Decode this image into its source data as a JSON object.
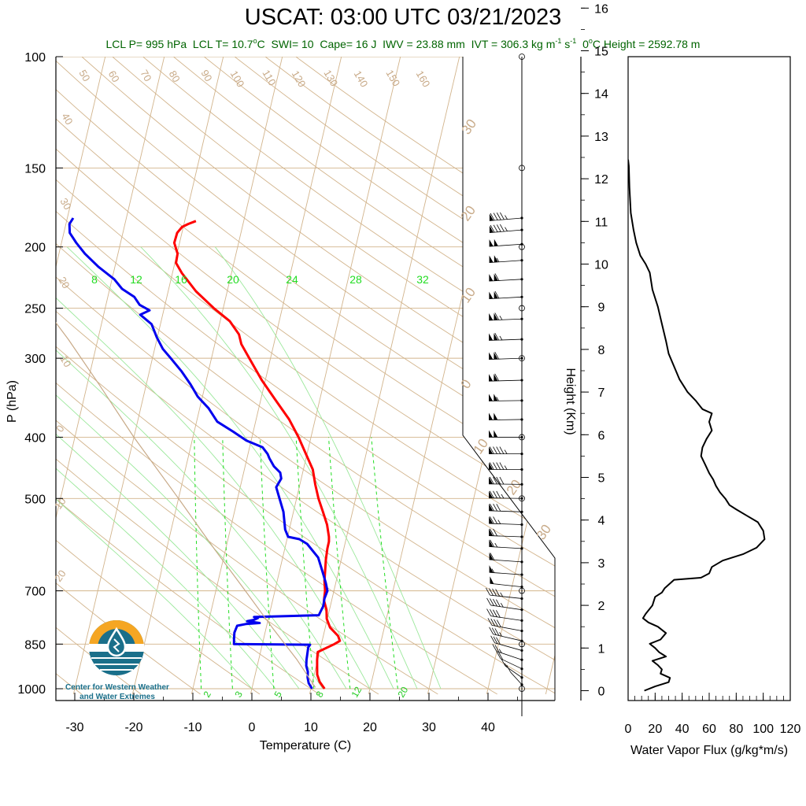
{
  "title": "USCAT: 03:00 UTC 03/21/2023",
  "diagnostics": {
    "lcl_p": "LCL P= 995 hPa",
    "lcl_t": "LCL T= 10.7",
    "lcl_t_unit_sup": "o",
    "lcl_t_unit": "C",
    "swi": "SWI= 10",
    "cape": "Cape= 16 J",
    "iwv": "IWV = 23.88 mm",
    "ivt": "IVT = 306.3 kg m",
    "ivt_sup1": "-1",
    "ivt_mid": " s",
    "ivt_sup2": "-1",
    "zero_height": "0",
    "zero_sup": "o",
    "zero_rest": "C Height = 2592.78 m"
  },
  "colors": {
    "temperature": "#ff0000",
    "dewpoint": "#0000ee",
    "isotherm": "#d2b48c",
    "mixing_ratio": "#22dd22",
    "diag_text": "#006400",
    "logo_orange": "#f5a623",
    "logo_teal": "#1a6f8a"
  },
  "logo": {
    "line1": "Center for Western Weather",
    "line2": "and Water Extremes"
  },
  "chart_data": [
    {
      "type": "line",
      "chart_kind": "skew-t log-p sounding",
      "xlabel": "Temperature (C)",
      "ylabel": "P (hPa)",
      "x_ticks": [
        -30,
        -20,
        -10,
        0,
        10,
        20,
        30,
        40
      ],
      "y_ticks": [
        100,
        150,
        200,
        250,
        300,
        400,
        500,
        700,
        850,
        1000
      ],
      "y_scale": "log",
      "y_reversed": true,
      "xlim": [
        -34,
        52
      ],
      "ylim": [
        1020,
        100
      ],
      "dry_adiabat_labels": [
        "50",
        "60",
        "70",
        "80",
        "90",
        "100",
        "110",
        "120",
        "130",
        "140",
        "150",
        "160",
        "40",
        "30",
        "20"
      ],
      "isotherm_labels": [
        "30",
        "20",
        "10",
        "0",
        "-10",
        "-20",
        "-30",
        "20",
        "10",
        "0",
        "10",
        "20"
      ],
      "moist_adiabat_labels": [
        "8",
        "12",
        "16",
        "20",
        "24",
        "28",
        "32"
      ],
      "mixing_ratio_labels": [
        "2",
        "3",
        "5",
        "8",
        "12",
        "20"
      ],
      "series": [
        {
          "name": "",
          "role": "temperature",
          "color": "#ff0000",
          "points": [
            [
              12.3,
              1000
            ],
            [
              11.2,
              975
            ],
            [
              10.5,
              950
            ],
            [
              10.2,
              925
            ],
            [
              9.9,
              900
            ],
            [
              9.7,
              875
            ],
            [
              12.2,
              850
            ],
            [
              13.0,
              840
            ],
            [
              12.5,
              825
            ],
            [
              10.8,
              800
            ],
            [
              9.9,
              775
            ],
            [
              9.5,
              750
            ],
            [
              8.7,
              725
            ],
            [
              8.5,
              700
            ],
            [
              8.0,
              675
            ],
            [
              7.7,
              650
            ],
            [
              7.4,
              625
            ],
            [
              7.2,
              600
            ],
            [
              7.2,
              585
            ],
            [
              7.0,
              575
            ],
            [
              6.2,
              550
            ],
            [
              5.0,
              525
            ],
            [
              3.7,
              500
            ],
            [
              2.6,
              475
            ],
            [
              1.6,
              450
            ],
            [
              -0.2,
              425
            ],
            [
              -2.1,
              400
            ],
            [
              -4.4,
              375
            ],
            [
              -7.4,
              350
            ],
            [
              -10.6,
              325
            ],
            [
              -13.6,
              300
            ],
            [
              -15.5,
              285
            ],
            [
              -16.3,
              275
            ],
            [
              -18.4,
              262
            ],
            [
              -21.6,
              250
            ],
            [
              -25.3,
              235
            ],
            [
              -28.4,
              220
            ],
            [
              -29.8,
              212
            ],
            [
              -29.9,
              205
            ],
            [
              -30.9,
              197
            ],
            [
              -30.8,
              190
            ],
            [
              -30.2,
              186
            ],
            [
              -29.3,
              184
            ],
            [
              -28.1,
              182
            ]
          ]
        },
        {
          "name": "",
          "role": "dewpoint",
          "color": "#0000ee",
          "points": [
            [
              10.2,
              1000
            ],
            [
              9.4,
              980
            ],
            [
              9.0,
              960
            ],
            [
              8.8,
              940
            ],
            [
              8.3,
              920
            ],
            [
              8.1,
              900
            ],
            [
              8.0,
              880
            ],
            [
              7.9,
              860
            ],
            [
              8.1,
              852
            ],
            [
              -4.8,
              850
            ],
            [
              -5.0,
              835
            ],
            [
              -5.2,
              815
            ],
            [
              -5.0,
              795
            ],
            [
              -3.6,
              790
            ],
            [
              -1.3,
              787
            ],
            [
              -3.5,
              782
            ],
            [
              -2.4,
              778
            ],
            [
              -1.8,
              773
            ],
            [
              -2.5,
              770
            ],
            [
              8.4,
              765
            ],
            [
              8.8,
              740
            ],
            [
              8.7,
              720
            ],
            [
              8.9,
              700
            ],
            [
              8.3,
              680
            ],
            [
              7.2,
              650
            ],
            [
              6.0,
              620
            ],
            [
              3.6,
              590
            ],
            [
              2.1,
              580
            ],
            [
              0.1,
              575
            ],
            [
              -0.7,
              560
            ],
            [
              -1.7,
              525
            ],
            [
              -2.9,
              500
            ],
            [
              -3.9,
              480
            ],
            [
              -3.4,
              465
            ],
            [
              -3.8,
              455
            ],
            [
              -5.1,
              445
            ],
            [
              -6.2,
              432
            ],
            [
              -6.7,
              425
            ],
            [
              -7.8,
              415
            ],
            [
              -10.8,
              405
            ],
            [
              -13.4,
              392
            ],
            [
              -16.5,
              378
            ],
            [
              -18.5,
              360
            ],
            [
              -20.8,
              345
            ],
            [
              -22.5,
              330
            ],
            [
              -24.5,
              315
            ],
            [
              -26.9,
              300
            ],
            [
              -28.6,
              290
            ],
            [
              -30.1,
              278
            ],
            [
              -31.5,
              265
            ],
            [
              -33.8,
              256
            ],
            [
              -32.4,
              252
            ],
            [
              -34.3,
              247
            ],
            [
              -35.5,
              240
            ],
            [
              -37.9,
              233
            ],
            [
              -39.6,
              225
            ],
            [
              -42.8,
              215
            ],
            [
              -45.6,
              205
            ],
            [
              -47.5,
              197
            ],
            [
              -49.0,
              190
            ],
            [
              -49.4,
              184
            ],
            [
              -49.0,
              180
            ]
          ]
        },
        {
          "name": "",
          "role": "parcel",
          "color": "#c8aa88",
          "points": [
            [
              10.7,
              995
            ],
            [
              6.5,
              900
            ],
            [
              1.0,
              800
            ],
            [
              -5.0,
              700
            ],
            [
              -12.0,
              600
            ],
            [
              -20.0,
              500
            ],
            [
              -30.0,
              400
            ],
            [
              -38.0,
              330
            ],
            [
              -45.0,
              280
            ],
            [
              -55.0,
              225
            ]
          ]
        }
      ],
      "wind_barbs": [
        {
          "p": 985,
          "speed_kt": 10,
          "dir_deg": 200
        },
        {
          "p": 960,
          "speed_kt": 15,
          "dir_deg": 210
        },
        {
          "p": 930,
          "speed_kt": 20,
          "dir_deg": 220
        },
        {
          "p": 900,
          "speed_kt": 25,
          "dir_deg": 230
        },
        {
          "p": 870,
          "speed_kt": 30,
          "dir_deg": 235
        },
        {
          "p": 840,
          "speed_kt": 35,
          "dir_deg": 240
        },
        {
          "p": 810,
          "speed_kt": 40,
          "dir_deg": 245
        },
        {
          "p": 780,
          "speed_kt": 40,
          "dir_deg": 250
        },
        {
          "p": 750,
          "speed_kt": 45,
          "dir_deg": 250
        },
        {
          "p": 720,
          "speed_kt": 45,
          "dir_deg": 255
        },
        {
          "p": 690,
          "speed_kt": 50,
          "dir_deg": 255
        },
        {
          "p": 660,
          "speed_kt": 55,
          "dir_deg": 260
        },
        {
          "p": 630,
          "speed_kt": 60,
          "dir_deg": 260
        },
        {
          "p": 600,
          "speed_kt": 65,
          "dir_deg": 262
        },
        {
          "p": 575,
          "speed_kt": 70,
          "dir_deg": 265
        },
        {
          "p": 550,
          "speed_kt": 75,
          "dir_deg": 265
        },
        {
          "p": 525,
          "speed_kt": 80,
          "dir_deg": 265
        },
        {
          "p": 500,
          "speed_kt": 85,
          "dir_deg": 268
        },
        {
          "p": 475,
          "speed_kt": 90,
          "dir_deg": 268
        },
        {
          "p": 450,
          "speed_kt": 95,
          "dir_deg": 270
        },
        {
          "p": 425,
          "speed_kt": 95,
          "dir_deg": 270
        },
        {
          "p": 400,
          "speed_kt": 100,
          "dir_deg": 270
        },
        {
          "p": 375,
          "speed_kt": 100,
          "dir_deg": 272
        },
        {
          "p": 350,
          "speed_kt": 105,
          "dir_deg": 272
        },
        {
          "p": 325,
          "speed_kt": 110,
          "dir_deg": 274
        },
        {
          "p": 300,
          "speed_kt": 110,
          "dir_deg": 275
        },
        {
          "p": 280,
          "speed_kt": 115,
          "dir_deg": 275
        },
        {
          "p": 260,
          "speed_kt": 115,
          "dir_deg": 276
        },
        {
          "p": 240,
          "speed_kt": 110,
          "dir_deg": 278
        },
        {
          "p": 225,
          "speed_kt": 110,
          "dir_deg": 278
        },
        {
          "p": 210,
          "speed_kt": 105,
          "dir_deg": 280
        },
        {
          "p": 198,
          "speed_kt": 100,
          "dir_deg": 280
        },
        {
          "p": 188,
          "speed_kt": 95,
          "dir_deg": 282
        },
        {
          "p": 180,
          "speed_kt": 95,
          "dir_deg": 282
        }
      ]
    },
    {
      "type": "line",
      "xlabel": "Water Vapor Flux (g/kg*m/s)",
      "ylabel": "Height (Km)",
      "x_ticks": [
        0,
        20,
        40,
        60,
        80,
        100,
        120
      ],
      "y_ticks": [
        0,
        1,
        2,
        3,
        4,
        5,
        6,
        7,
        8,
        9,
        10,
        11,
        12,
        13,
        14,
        15,
        16
      ],
      "xlim": [
        0,
        120
      ],
      "ylim": [
        -0.2,
        16.4
      ],
      "series": [
        {
          "name": "",
          "color": "#000000",
          "points": [
            [
              12,
              0.0
            ],
            [
              20,
              0.1
            ],
            [
              30,
              0.2
            ],
            [
              31,
              0.3
            ],
            [
              24,
              0.4
            ],
            [
              25,
              0.5
            ],
            [
              22,
              0.6
            ],
            [
              18,
              0.7
            ],
            [
              28,
              0.8
            ],
            [
              23,
              0.9
            ],
            [
              20,
              1.0
            ],
            [
              16,
              1.1
            ],
            [
              24,
              1.2
            ],
            [
              28,
              1.35
            ],
            [
              22,
              1.5
            ],
            [
              15,
              1.6
            ],
            [
              11,
              1.7
            ],
            [
              13,
              1.8
            ],
            [
              18,
              2.0
            ],
            [
              20,
              2.2
            ],
            [
              25,
              2.3
            ],
            [
              27,
              2.4
            ],
            [
              34,
              2.6
            ],
            [
              54,
              2.65
            ],
            [
              60,
              2.75
            ],
            [
              62,
              2.9
            ],
            [
              70,
              3.05
            ],
            [
              85,
              3.2
            ],
            [
              95,
              3.35
            ],
            [
              101,
              3.55
            ],
            [
              100,
              3.75
            ],
            [
              96,
              3.95
            ],
            [
              88,
              4.1
            ],
            [
              80,
              4.25
            ],
            [
              75,
              4.35
            ],
            [
              72,
              4.5
            ],
            [
              68,
              4.65
            ],
            [
              65,
              4.8
            ],
            [
              63,
              4.95
            ],
            [
              60,
              5.1
            ],
            [
              57,
              5.3
            ],
            [
              54,
              5.5
            ],
            [
              55,
              5.7
            ],
            [
              58,
              5.9
            ],
            [
              62,
              6.1
            ],
            [
              60,
              6.3
            ],
            [
              62,
              6.5
            ],
            [
              55,
              6.6
            ],
            [
              50,
              6.8
            ],
            [
              44,
              7.0
            ],
            [
              42,
              7.1
            ],
            [
              38,
              7.3
            ],
            [
              34,
              7.6
            ],
            [
              30,
              7.9
            ],
            [
              28,
              8.2
            ],
            [
              25,
              8.6
            ],
            [
              22,
              9.0
            ],
            [
              18,
              9.4
            ],
            [
              16,
              9.8
            ],
            [
              13,
              10.0
            ],
            [
              9,
              10.2
            ],
            [
              6,
              10.5
            ],
            [
              4,
              10.8
            ],
            [
              2,
              11.2
            ],
            [
              1,
              11.8
            ],
            [
              0.5,
              12.3
            ],
            [
              0,
              12.45
            ]
          ]
        }
      ]
    }
  ],
  "axis_labels": {
    "temperature": "Temperature (C)",
    "pressure": "P (hPa)",
    "height": "Height (Km)",
    "flux": "Water Vapor Flux (g/kg*m/s)"
  }
}
